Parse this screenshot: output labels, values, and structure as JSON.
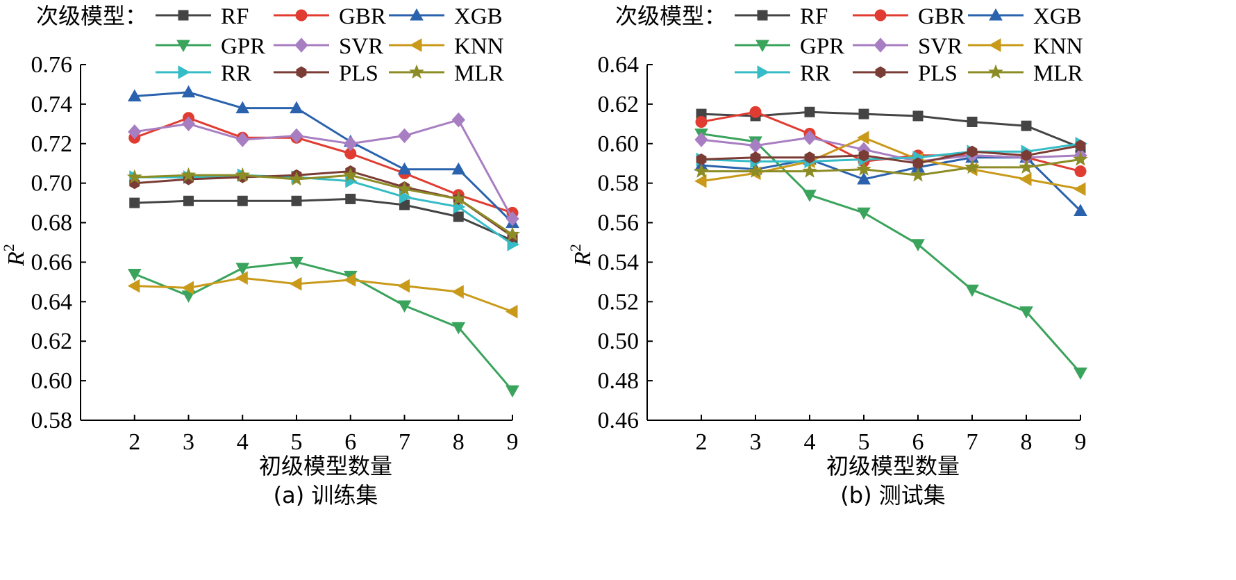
{
  "legend_title": "次级模型：",
  "series_styles": [
    {
      "name": "RF",
      "color": "#444444",
      "marker": "square"
    },
    {
      "name": "GBR",
      "color": "#e03c31",
      "marker": "circle"
    },
    {
      "name": "XGB",
      "color": "#2a62ad",
      "marker": "triangle-up"
    },
    {
      "name": "GPR",
      "color": "#3aa35c",
      "marker": "triangle-down"
    },
    {
      "name": "SVR",
      "color": "#a87ec2",
      "marker": "diamond"
    },
    {
      "name": "KNN",
      "color": "#c99a1a",
      "marker": "triangle-left"
    },
    {
      "name": "RR",
      "color": "#35bcc6",
      "marker": "triangle-right"
    },
    {
      "name": "PLS",
      "color": "#7a3c34",
      "marker": "hexagon"
    },
    {
      "name": "MLR",
      "color": "#8c8c26",
      "marker": "star"
    }
  ],
  "chart_data": [
    {
      "type": "line",
      "caption": "(a) 训练集",
      "xlabel": "初级模型数量",
      "ylabel": "R",
      "ylabel_sup": "2",
      "x": [
        2,
        3,
        4,
        5,
        6,
        7,
        8,
        9
      ],
      "xlim": [
        1,
        9
      ],
      "ylim": [
        0.58,
        0.76
      ],
      "yticks": [
        "0.58",
        "0.60",
        "0.62",
        "0.64",
        "0.66",
        "0.68",
        "0.70",
        "0.72",
        "0.74",
        "0.76"
      ],
      "series": [
        {
          "name": "RF",
          "values": [
            0.69,
            0.691,
            0.691,
            0.691,
            0.692,
            0.689,
            0.683,
            0.671
          ]
        },
        {
          "name": "GBR",
          "values": [
            0.723,
            0.733,
            0.723,
            0.723,
            0.715,
            0.705,
            0.694,
            0.685
          ]
        },
        {
          "name": "XGB",
          "values": [
            0.744,
            0.746,
            0.738,
            0.738,
            0.721,
            0.707,
            0.707,
            0.68
          ]
        },
        {
          "name": "GPR",
          "values": [
            0.654,
            0.643,
            0.657,
            0.66,
            0.653,
            0.638,
            0.627,
            0.595
          ]
        },
        {
          "name": "SVR",
          "values": [
            0.726,
            0.73,
            0.722,
            0.724,
            0.72,
            0.724,
            0.732,
            0.682
          ]
        },
        {
          "name": "KNN",
          "values": [
            0.648,
            0.647,
            0.652,
            0.649,
            0.651,
            0.648,
            0.645,
            0.635
          ]
        },
        {
          "name": "RR",
          "values": [
            0.703,
            0.703,
            0.704,
            0.703,
            0.701,
            0.693,
            0.688,
            0.669
          ]
        },
        {
          "name": "PLS",
          "values": [
            0.7,
            0.702,
            0.703,
            0.704,
            0.706,
            0.698,
            0.692,
            0.673
          ]
        },
        {
          "name": "MLR",
          "values": [
            0.703,
            0.704,
            0.704,
            0.702,
            0.704,
            0.697,
            0.692,
            0.674
          ]
        }
      ]
    },
    {
      "type": "line",
      "caption": "(b) 测试集",
      "xlabel": "初级模型数量",
      "ylabel": "R",
      "ylabel_sup": "2",
      "x": [
        2,
        3,
        4,
        5,
        6,
        7,
        8,
        9
      ],
      "xlim": [
        1,
        9
      ],
      "ylim": [
        0.46,
        0.64
      ],
      "yticks": [
        "0.46",
        "0.48",
        "0.50",
        "0.52",
        "0.54",
        "0.56",
        "0.58",
        "0.60",
        "0.62",
        "0.64"
      ],
      "series": [
        {
          "name": "RF",
          "values": [
            0.615,
            0.614,
            0.616,
            0.615,
            0.614,
            0.611,
            0.609,
            0.598
          ]
        },
        {
          "name": "GBR",
          "values": [
            0.611,
            0.616,
            0.605,
            0.591,
            0.594,
            0.594,
            0.593,
            0.586
          ]
        },
        {
          "name": "XGB",
          "values": [
            0.589,
            0.587,
            0.592,
            0.582,
            0.588,
            0.593,
            0.593,
            0.566
          ]
        },
        {
          "name": "GPR",
          "values": [
            0.605,
            0.601,
            0.574,
            0.565,
            0.549,
            0.526,
            0.515,
            0.484
          ]
        },
        {
          "name": "SVR",
          "values": [
            0.602,
            0.599,
            0.603,
            0.597,
            0.591,
            0.594,
            0.593,
            0.594
          ]
        },
        {
          "name": "KNN",
          "values": [
            0.581,
            0.585,
            0.591,
            0.603,
            0.592,
            0.587,
            0.582,
            0.577
          ]
        },
        {
          "name": "RR",
          "values": [
            0.592,
            0.591,
            0.591,
            0.592,
            0.593,
            0.596,
            0.596,
            0.6
          ]
        },
        {
          "name": "PLS",
          "values": [
            0.592,
            0.593,
            0.593,
            0.594,
            0.59,
            0.596,
            0.594,
            0.599
          ]
        },
        {
          "name": "MLR",
          "values": [
            0.586,
            0.586,
            0.586,
            0.587,
            0.584,
            0.588,
            0.588,
            0.592
          ]
        }
      ]
    }
  ]
}
